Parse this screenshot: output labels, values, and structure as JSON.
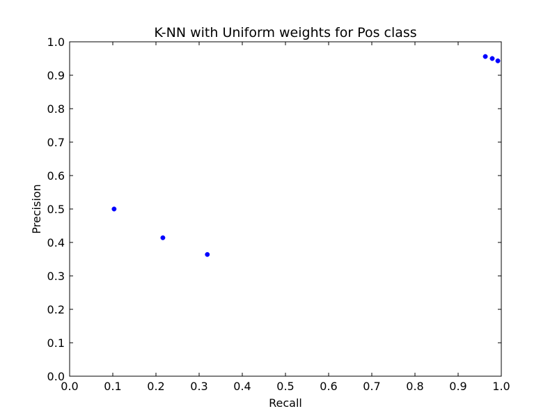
{
  "chart_data": {
    "type": "scatter",
    "title": "K-NN with Uniform weights for Pos class",
    "xlabel": "Recall",
    "ylabel": "Precision",
    "xlim": [
      0.0,
      1.0
    ],
    "ylim": [
      0.0,
      1.0
    ],
    "xticks": [
      "0.0",
      "0.1",
      "0.2",
      "0.3",
      "0.4",
      "0.5",
      "0.6",
      "0.7",
      "0.8",
      "0.9",
      "1.0"
    ],
    "yticks": [
      "0.0",
      "0.1",
      "0.2",
      "0.3",
      "0.4",
      "0.5",
      "0.6",
      "0.7",
      "0.8",
      "0.9",
      "1.0"
    ],
    "grid": false,
    "legend": "none",
    "marker_color": "#0000ff",
    "series": [
      {
        "points": [
          {
            "x": 0.103,
            "y": 0.5
          },
          {
            "x": 0.216,
            "y": 0.414
          },
          {
            "x": 0.319,
            "y": 0.364
          },
          {
            "x": 0.963,
            "y": 0.956
          },
          {
            "x": 0.979,
            "y": 0.95
          },
          {
            "x": 0.992,
            "y": 0.943
          }
        ]
      }
    ]
  }
}
